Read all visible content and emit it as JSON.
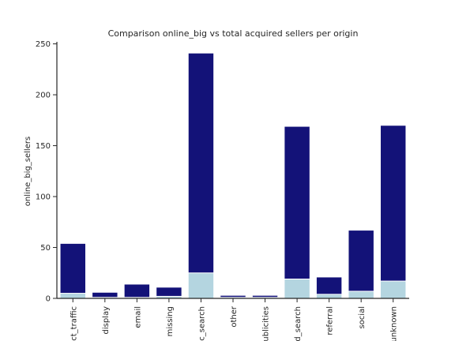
{
  "chart_data": {
    "type": "bar",
    "title": "Comparison online_big vs total acquired sellers per origin",
    "xlabel": "",
    "ylabel": "online_big_sellers",
    "ylim": [
      0,
      252
    ],
    "yticks": [
      0,
      50,
      100,
      150,
      200,
      250
    ],
    "grid": false,
    "legend": "none",
    "categories": [
      "ct_traffic",
      "display",
      "email",
      "missing",
      "c_search",
      "other",
      "ublicities",
      "d_search",
      "referral",
      "social",
      "unknown"
    ],
    "series": [
      {
        "values": [
          54,
          6,
          14,
          11,
          241,
          3,
          3,
          169,
          21,
          67,
          170
        ],
        "color": "#131278"
      },
      {
        "values": [
          5,
          1,
          1,
          2,
          25,
          1,
          1,
          19,
          4,
          7,
          17
        ],
        "color": "#b4d5e0"
      }
    ]
  }
}
